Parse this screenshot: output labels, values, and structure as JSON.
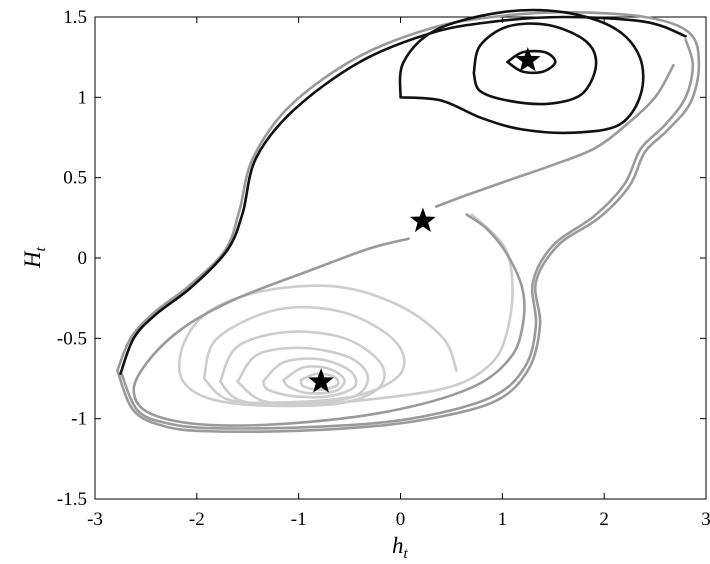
{
  "chart_data": {
    "type": "line",
    "title": "",
    "xlabel": "h",
    "xlabel_sub": "t",
    "ylabel": "H",
    "ylabel_sub": "t",
    "xlim": [
      -3,
      3
    ],
    "ylim": [
      -1.5,
      1.5
    ],
    "xticks": [
      -3,
      -2,
      -1,
      0,
      1,
      2,
      3
    ],
    "xtick_labels": [
      "-3",
      "-2",
      "-1",
      "0",
      "1",
      "2",
      "3"
    ],
    "yticks": [
      -1.5,
      -1,
      -0.5,
      0,
      0.5,
      1,
      1.5
    ],
    "ytick_labels": [
      "-1.5",
      "-1",
      "-0.5",
      "0",
      "0.5",
      "1",
      "1.5"
    ],
    "grid": false,
    "legend": "none",
    "colors": {
      "black": "#111111",
      "mid_gray": "#9a9a9a",
      "light_gray": "#cdcdcd"
    },
    "equilibria": [
      {
        "x": 1.25,
        "y": 1.23,
        "marker": "star"
      },
      {
        "x": 0.22,
        "y": 0.23,
        "marker": "star"
      },
      {
        "x": -0.78,
        "y": -0.77,
        "marker": "star"
      }
    ],
    "series": [
      {
        "color": "black",
        "points": [
          [
            1.05,
            1.22
          ],
          [
            1.2,
            1.28
          ],
          [
            1.42,
            1.28
          ],
          [
            1.52,
            1.22
          ],
          [
            1.4,
            1.16
          ],
          [
            1.2,
            1.16
          ],
          [
            1.05,
            1.22
          ]
        ]
      },
      {
        "color": "black",
        "points": [
          [
            0.72,
            1.15
          ],
          [
            0.78,
            1.32
          ],
          [
            1.05,
            1.44
          ],
          [
            1.45,
            1.45
          ],
          [
            1.82,
            1.35
          ],
          [
            1.92,
            1.2
          ],
          [
            1.78,
            1.02
          ],
          [
            1.45,
            0.96
          ],
          [
            1.05,
            0.98
          ],
          [
            0.78,
            1.04
          ],
          [
            0.72,
            1.15
          ]
        ]
      },
      {
        "color": "black",
        "points": [
          [
            0,
            1.0
          ],
          [
            0.03,
            1.22
          ],
          [
            0.35,
            1.42
          ],
          [
            1.0,
            1.53
          ],
          [
            1.6,
            1.53
          ],
          [
            2.1,
            1.43
          ],
          [
            2.35,
            1.25
          ],
          [
            2.36,
            1.02
          ],
          [
            2.15,
            0.83
          ],
          [
            1.7,
            0.78
          ],
          [
            1.2,
            0.8
          ],
          [
            0.8,
            0.87
          ],
          [
            0.4,
            0.98
          ],
          [
            0,
            1.0
          ]
        ]
      },
      {
        "color": "black",
        "points": [
          [
            2.8,
            1.38
          ],
          [
            2.4,
            1.47
          ],
          [
            1.6,
            1.5
          ],
          [
            0.9,
            1.47
          ],
          [
            0.3,
            1.4
          ],
          [
            -0.4,
            1.22
          ],
          [
            -1.05,
            0.92
          ],
          [
            -1.42,
            0.62
          ],
          [
            -1.55,
            0.28
          ],
          [
            -1.7,
            0.05
          ],
          [
            -2.05,
            -0.18
          ],
          [
            -2.4,
            -0.35
          ],
          [
            -2.62,
            -0.5
          ],
          [
            -2.75,
            -0.72
          ]
        ]
      },
      {
        "color": "mid_gray",
        "points": [
          [
            -2.78,
            -0.7
          ],
          [
            -2.65,
            -0.5
          ],
          [
            -2.42,
            -0.34
          ],
          [
            -2.07,
            -0.17
          ],
          [
            -1.72,
            0.05
          ],
          [
            -1.58,
            0.3
          ],
          [
            -1.45,
            0.62
          ],
          [
            -1.08,
            0.95
          ],
          [
            -0.42,
            1.25
          ],
          [
            0.3,
            1.43
          ],
          [
            0.9,
            1.5
          ],
          [
            1.6,
            1.53
          ],
          [
            2.4,
            1.5
          ],
          [
            2.84,
            1.4
          ],
          [
            2.93,
            1.2
          ],
          [
            2.85,
            0.97
          ],
          [
            2.63,
            0.8
          ],
          [
            2.4,
            0.66
          ],
          [
            2.25,
            0.45
          ],
          [
            1.95,
            0.25
          ],
          [
            1.55,
            0.08
          ],
          [
            1.33,
            -0.15
          ],
          [
            1.37,
            -0.42
          ],
          [
            1.25,
            -0.7
          ],
          [
            0.9,
            -0.9
          ],
          [
            0.1,
            -1.02
          ],
          [
            -0.8,
            -1.07
          ],
          [
            -1.8,
            -1.08
          ],
          [
            -2.3,
            -1.05
          ],
          [
            -2.62,
            -0.95
          ],
          [
            -2.78,
            -0.7
          ]
        ]
      },
      {
        "color": "mid_gray",
        "points": [
          [
            -2.74,
            -0.72
          ],
          [
            -2.58,
            -0.95
          ],
          [
            -2.28,
            -1.03
          ],
          [
            -1.8,
            -1.06
          ],
          [
            -0.8,
            -1.05
          ],
          [
            0.1,
            -1.0
          ],
          [
            0.88,
            -0.87
          ],
          [
            1.22,
            -0.68
          ],
          [
            1.33,
            -0.42
          ],
          [
            1.3,
            -0.15
          ],
          [
            1.5,
            0.08
          ],
          [
            1.9,
            0.26
          ],
          [
            2.2,
            0.46
          ],
          [
            2.36,
            0.68
          ],
          [
            2.6,
            0.83
          ],
          [
            2.8,
            1.0
          ],
          [
            2.87,
            1.2
          ],
          [
            2.8,
            1.36
          ]
        ]
      },
      {
        "color": "mid_gray",
        "points": [
          [
            0.35,
            0.32
          ],
          [
            0.6,
            0.38
          ],
          [
            1.0,
            0.47
          ],
          [
            1.5,
            0.58
          ],
          [
            1.9,
            0.68
          ],
          [
            2.2,
            0.82
          ],
          [
            2.5,
            1.0
          ],
          [
            2.68,
            1.2
          ]
        ]
      },
      {
        "color": "mid_gray",
        "points": [
          [
            0.08,
            0.12
          ],
          [
            -0.3,
            0.06
          ],
          [
            -0.9,
            -0.08
          ],
          [
            -1.6,
            -0.25
          ],
          [
            -2.1,
            -0.42
          ],
          [
            -2.45,
            -0.62
          ],
          [
            -2.62,
            -0.82
          ],
          [
            -2.45,
            -0.97
          ],
          [
            -1.85,
            -1.04
          ],
          [
            -0.9,
            -1.02
          ],
          [
            0.0,
            -0.94
          ],
          [
            0.72,
            -0.8
          ],
          [
            1.08,
            -0.62
          ],
          [
            1.2,
            -0.42
          ],
          [
            1.2,
            -0.2
          ],
          [
            1.05,
            0.02
          ],
          [
            0.85,
            0.18
          ],
          [
            0.65,
            0.27
          ]
        ]
      },
      {
        "color": "light_gray",
        "points": [
          [
            0.7,
            0.27
          ],
          [
            1.02,
            0.07
          ],
          [
            1.1,
            -0.18
          ],
          [
            1.05,
            -0.45
          ],
          [
            0.9,
            -0.65
          ],
          [
            0.5,
            -0.8
          ],
          [
            -0.3,
            -0.88
          ],
          [
            -1.2,
            -0.92
          ],
          [
            -1.85,
            -0.88
          ],
          [
            -2.15,
            -0.75
          ],
          [
            -2.12,
            -0.52
          ],
          [
            -1.85,
            -0.32
          ],
          [
            -1.3,
            -0.2
          ],
          [
            -0.6,
            -0.18
          ],
          [
            0.0,
            -0.3
          ],
          [
            0.42,
            -0.5
          ],
          [
            0.55,
            -0.7
          ]
        ]
      },
      {
        "color": "light_gray",
        "points": [
          [
            -1.93,
            -0.75
          ],
          [
            -1.8,
            -0.5
          ],
          [
            -1.2,
            -0.32
          ],
          [
            -0.55,
            -0.34
          ],
          [
            -0.05,
            -0.52
          ],
          [
            0.0,
            -0.72
          ],
          [
            -0.45,
            -0.86
          ],
          [
            -1.2,
            -0.9
          ],
          [
            -1.7,
            -0.88
          ],
          [
            -1.93,
            -0.75
          ]
        ]
      },
      {
        "color": "light_gray",
        "points": [
          [
            -1.77,
            -0.77
          ],
          [
            -1.6,
            -0.55
          ],
          [
            -1.1,
            -0.46
          ],
          [
            -0.55,
            -0.5
          ],
          [
            -0.2,
            -0.65
          ],
          [
            -0.2,
            -0.8
          ],
          [
            -0.55,
            -0.9
          ],
          [
            -1.2,
            -0.92
          ],
          [
            -1.6,
            -0.88
          ],
          [
            -1.77,
            -0.77
          ]
        ]
      },
      {
        "color": "light_gray",
        "points": [
          [
            -1.6,
            -0.77
          ],
          [
            -1.4,
            -0.6
          ],
          [
            -0.95,
            -0.56
          ],
          [
            -0.5,
            -0.62
          ],
          [
            -0.32,
            -0.74
          ],
          [
            -0.45,
            -0.86
          ],
          [
            -0.9,
            -0.9
          ],
          [
            -1.35,
            -0.89
          ],
          [
            -1.6,
            -0.77
          ]
        ]
      },
      {
        "color": "light_gray",
        "points": [
          [
            -1.35,
            -0.77
          ],
          [
            -1.15,
            -0.65
          ],
          [
            -0.8,
            -0.63
          ],
          [
            -0.5,
            -0.7
          ],
          [
            -0.45,
            -0.8
          ],
          [
            -0.7,
            -0.86
          ],
          [
            -1.05,
            -0.86
          ],
          [
            -1.3,
            -0.82
          ],
          [
            -1.35,
            -0.77
          ]
        ]
      },
      {
        "color": "light_gray",
        "points": [
          [
            -1.15,
            -0.76
          ],
          [
            -0.95,
            -0.68
          ],
          [
            -0.7,
            -0.69
          ],
          [
            -0.55,
            -0.76
          ],
          [
            -0.65,
            -0.83
          ],
          [
            -0.92,
            -0.84
          ],
          [
            -1.1,
            -0.8
          ],
          [
            -1.15,
            -0.76
          ]
        ]
      },
      {
        "color": "light_gray",
        "points": [
          [
            -0.98,
            -0.76
          ],
          [
            -0.82,
            -0.72
          ],
          [
            -0.65,
            -0.74
          ],
          [
            -0.62,
            -0.79
          ],
          [
            -0.78,
            -0.82
          ],
          [
            -0.95,
            -0.8
          ],
          [
            -0.98,
            -0.76
          ]
        ]
      }
    ]
  }
}
